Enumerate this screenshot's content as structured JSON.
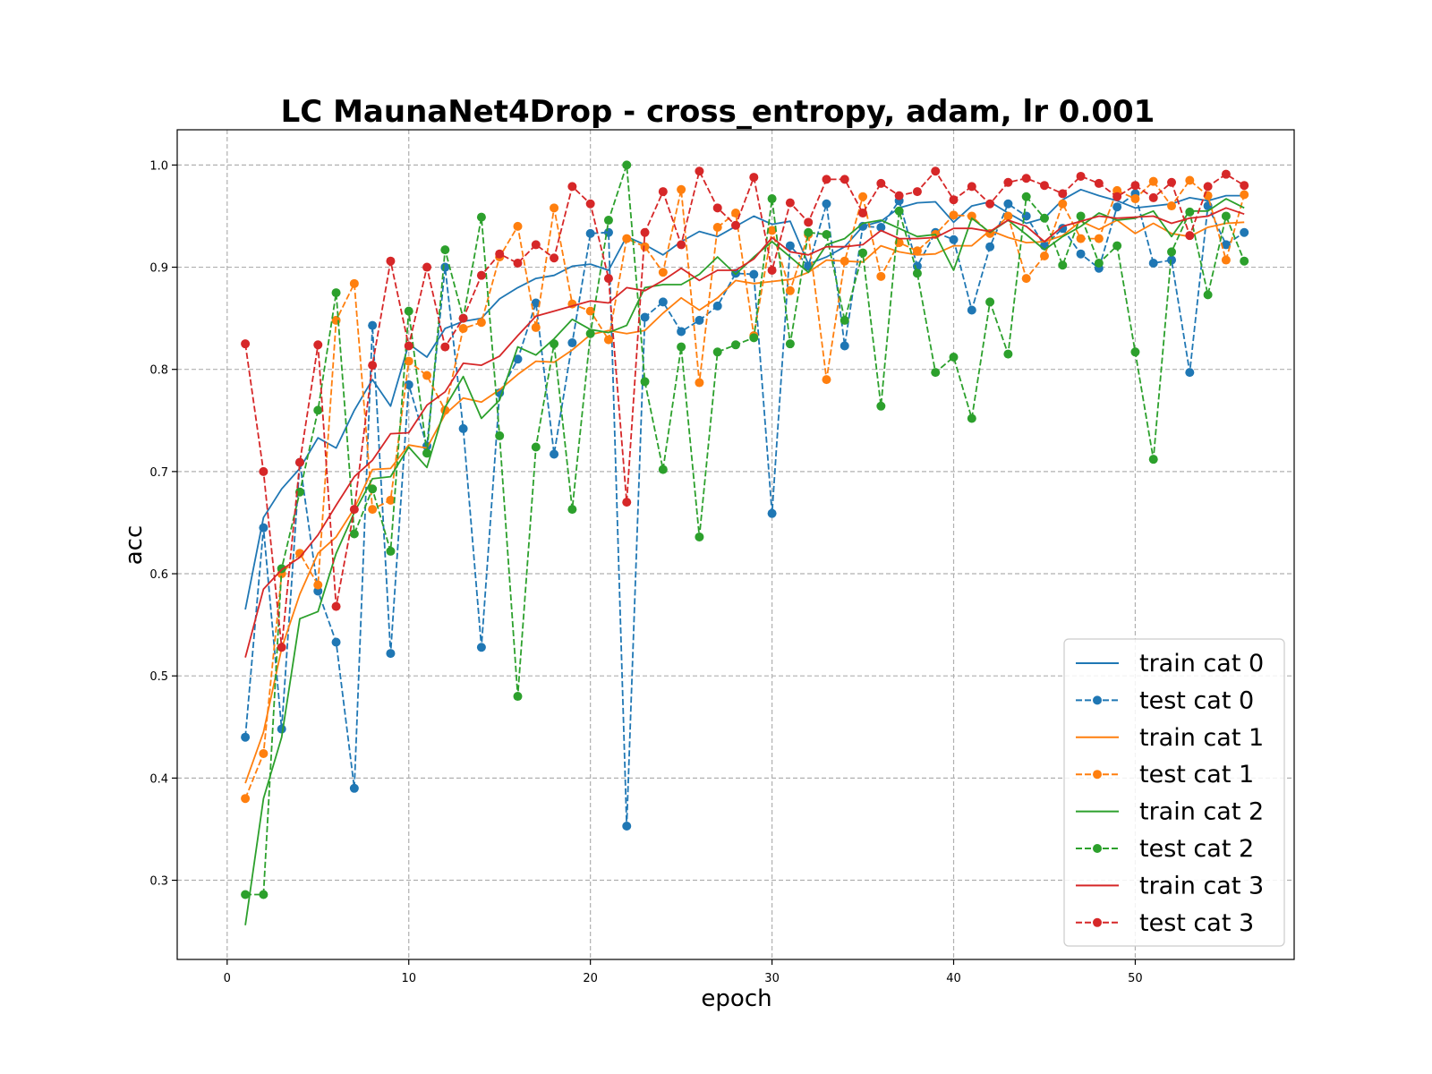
{
  "chart_data": {
    "type": "line",
    "title": "LC MaunaNet4Drop - cross_entropy, adam, lr 0.001",
    "xlabel": "epoch",
    "ylabel": "acc",
    "xlim": [
      -2.75,
      58.75
    ],
    "ylim": [
      0.2225,
      1.0345
    ],
    "xticks": [
      0,
      10,
      20,
      30,
      40,
      50
    ],
    "yticks": [
      0.3,
      0.4,
      0.5,
      0.6,
      0.7,
      0.8,
      0.9,
      1.0
    ],
    "xtick_labels": [
      "0",
      "10",
      "20",
      "30",
      "40",
      "50"
    ],
    "ytick_labels": [
      "0.3",
      "0.4",
      "0.5",
      "0.6",
      "0.7",
      "0.8",
      "0.9",
      "1.0"
    ],
    "grid": true,
    "legend_position": "lower right",
    "x": [
      1,
      2,
      3,
      4,
      5,
      6,
      7,
      8,
      9,
      10,
      11,
      12,
      13,
      14,
      15,
      16,
      17,
      18,
      19,
      20,
      21,
      22,
      23,
      24,
      25,
      26,
      27,
      28,
      29,
      30,
      31,
      32,
      33,
      34,
      35,
      36,
      37,
      38,
      39,
      40,
      41,
      42,
      43,
      44,
      45,
      46,
      47,
      48,
      49,
      50,
      51,
      52,
      53,
      54,
      55,
      56
    ],
    "series": [
      {
        "name": "train cat 0",
        "color": "#1f77b4",
        "style": "solid",
        "values": [
          0.565,
          0.655,
          0.683,
          0.703,
          0.733,
          0.723,
          0.76,
          0.79,
          0.764,
          0.825,
          0.812,
          0.84,
          0.847,
          0.85,
          0.869,
          0.88,
          0.889,
          0.892,
          0.901,
          0.903,
          0.897,
          0.93,
          0.922,
          0.912,
          0.925,
          0.935,
          0.93,
          0.94,
          0.95,
          0.942,
          0.945,
          0.903,
          0.91,
          0.92,
          0.94,
          0.945,
          0.958,
          0.963,
          0.964,
          0.944,
          0.96,
          0.964,
          0.953,
          0.943,
          0.948,
          0.966,
          0.976,
          0.97,
          0.965,
          0.958,
          0.96,
          0.962,
          0.968,
          0.965,
          0.97,
          0.97
        ]
      },
      {
        "name": "test cat 0",
        "color": "#1f77b4",
        "style": "dashed",
        "values": [
          0.44,
          0.645,
          0.448,
          0.709,
          0.583,
          0.533,
          0.39,
          0.843,
          0.522,
          0.785,
          0.725,
          0.9,
          0.742,
          0.528,
          0.777,
          0.81,
          0.865,
          0.717,
          0.826,
          0.933,
          0.934,
          0.353,
          0.851,
          0.866,
          0.837,
          0.848,
          0.862,
          0.894,
          0.893,
          0.659,
          0.921,
          0.901,
          0.962,
          0.823,
          0.94,
          0.939,
          0.965,
          0.901,
          0.934,
          0.927,
          0.858,
          0.92,
          0.962,
          0.95,
          0.921,
          0.938,
          0.913,
          0.899,
          0.959,
          0.972,
          0.904,
          0.907,
          0.797,
          0.96,
          0.922,
          0.934
        ]
      },
      {
        "name": "train cat 1",
        "color": "#ff7f0e",
        "style": "solid",
        "values": [
          0.395,
          0.445,
          0.527,
          0.58,
          0.62,
          0.636,
          0.664,
          0.702,
          0.703,
          0.726,
          0.723,
          0.756,
          0.772,
          0.768,
          0.78,
          0.795,
          0.808,
          0.807,
          0.819,
          0.834,
          0.838,
          0.835,
          0.838,
          0.855,
          0.87,
          0.858,
          0.87,
          0.887,
          0.884,
          0.886,
          0.888,
          0.895,
          0.907,
          0.906,
          0.905,
          0.921,
          0.915,
          0.912,
          0.913,
          0.921,
          0.921,
          0.936,
          0.929,
          0.924,
          0.925,
          0.931,
          0.945,
          0.937,
          0.946,
          0.933,
          0.943,
          0.933,
          0.93,
          0.939,
          0.943,
          0.944
        ]
      },
      {
        "name": "test cat 1",
        "color": "#ff7f0e",
        "style": "dashed",
        "values": [
          0.38,
          0.424,
          0.6,
          0.62,
          0.589,
          0.848,
          0.884,
          0.663,
          0.672,
          0.808,
          0.794,
          0.76,
          0.84,
          0.846,
          0.91,
          0.94,
          0.841,
          0.958,
          0.864,
          0.857,
          0.829,
          0.928,
          0.92,
          0.895,
          0.976,
          0.787,
          0.939,
          0.953,
          0.833,
          0.936,
          0.877,
          0.932,
          0.79,
          0.906,
          0.969,
          0.891,
          0.924,
          0.916,
          0.932,
          0.951,
          0.95,
          0.933,
          0.95,
          0.889,
          0.911,
          0.962,
          0.928,
          0.928,
          0.975,
          0.967,
          0.984,
          0.96,
          0.985,
          0.97,
          0.907,
          0.971
        ]
      },
      {
        "name": "train cat 2",
        "color": "#2ca02c",
        "style": "solid",
        "values": [
          0.256,
          0.38,
          0.44,
          0.556,
          0.563,
          0.62,
          0.66,
          0.693,
          0.695,
          0.724,
          0.704,
          0.763,
          0.793,
          0.752,
          0.77,
          0.822,
          0.814,
          0.83,
          0.849,
          0.839,
          0.836,
          0.843,
          0.88,
          0.883,
          0.883,
          0.893,
          0.91,
          0.893,
          0.91,
          0.925,
          0.91,
          0.895,
          0.922,
          0.928,
          0.943,
          0.946,
          0.938,
          0.93,
          0.932,
          0.897,
          0.948,
          0.934,
          0.946,
          0.932,
          0.917,
          0.93,
          0.94,
          0.953,
          0.946,
          0.948,
          0.955,
          0.93,
          0.955,
          0.955,
          0.967,
          0.958
        ]
      },
      {
        "name": "test cat 2",
        "color": "#2ca02c",
        "style": "dashed",
        "values": [
          0.286,
          0.286,
          0.605,
          0.68,
          0.76,
          0.875,
          0.639,
          0.683,
          0.622,
          0.857,
          0.718,
          0.917,
          0.85,
          0.949,
          0.735,
          0.48,
          0.724,
          0.825,
          0.663,
          0.835,
          0.946,
          1.0,
          0.788,
          0.702,
          0.822,
          0.636,
          0.817,
          0.824,
          0.831,
          0.967,
          0.825,
          0.934,
          0.932,
          0.848,
          0.914,
          0.764,
          0.955,
          0.894,
          0.797,
          0.812,
          0.752,
          0.866,
          0.815,
          0.969,
          0.948,
          0.902,
          0.95,
          0.904,
          0.921,
          0.817,
          0.712,
          0.915,
          0.954,
          0.873,
          0.95,
          0.906
        ]
      },
      {
        "name": "train cat 3",
        "color": "#d62728",
        "style": "solid",
        "values": [
          0.518,
          0.585,
          0.604,
          0.616,
          0.638,
          0.667,
          0.695,
          0.711,
          0.737,
          0.738,
          0.765,
          0.778,
          0.806,
          0.804,
          0.813,
          0.833,
          0.852,
          0.857,
          0.862,
          0.867,
          0.865,
          0.88,
          0.877,
          0.887,
          0.899,
          0.887,
          0.897,
          0.897,
          0.908,
          0.929,
          0.915,
          0.912,
          0.92,
          0.92,
          0.922,
          0.936,
          0.928,
          0.928,
          0.929,
          0.938,
          0.938,
          0.935,
          0.946,
          0.94,
          0.925,
          0.94,
          0.945,
          0.95,
          0.948,
          0.949,
          0.95,
          0.943,
          0.948,
          0.95,
          0.958,
          0.952
        ]
      },
      {
        "name": "test cat 3",
        "color": "#d62728",
        "style": "dashed",
        "values": [
          0.825,
          0.7,
          0.528,
          0.709,
          0.824,
          0.568,
          0.663,
          0.804,
          0.906,
          0.823,
          0.9,
          0.822,
          0.85,
          0.892,
          0.913,
          0.904,
          0.922,
          0.909,
          0.979,
          0.962,
          0.889,
          0.67,
          0.934,
          0.974,
          0.922,
          0.994,
          0.958,
          0.941,
          0.988,
          0.897,
          0.963,
          0.944,
          0.986,
          0.986,
          0.953,
          0.982,
          0.97,
          0.974,
          0.994,
          0.966,
          0.979,
          0.962,
          0.983,
          0.987,
          0.98,
          0.972,
          0.989,
          0.982,
          0.969,
          0.98,
          0.968,
          0.983,
          0.931,
          0.979,
          0.991,
          0.98
        ]
      }
    ]
  }
}
